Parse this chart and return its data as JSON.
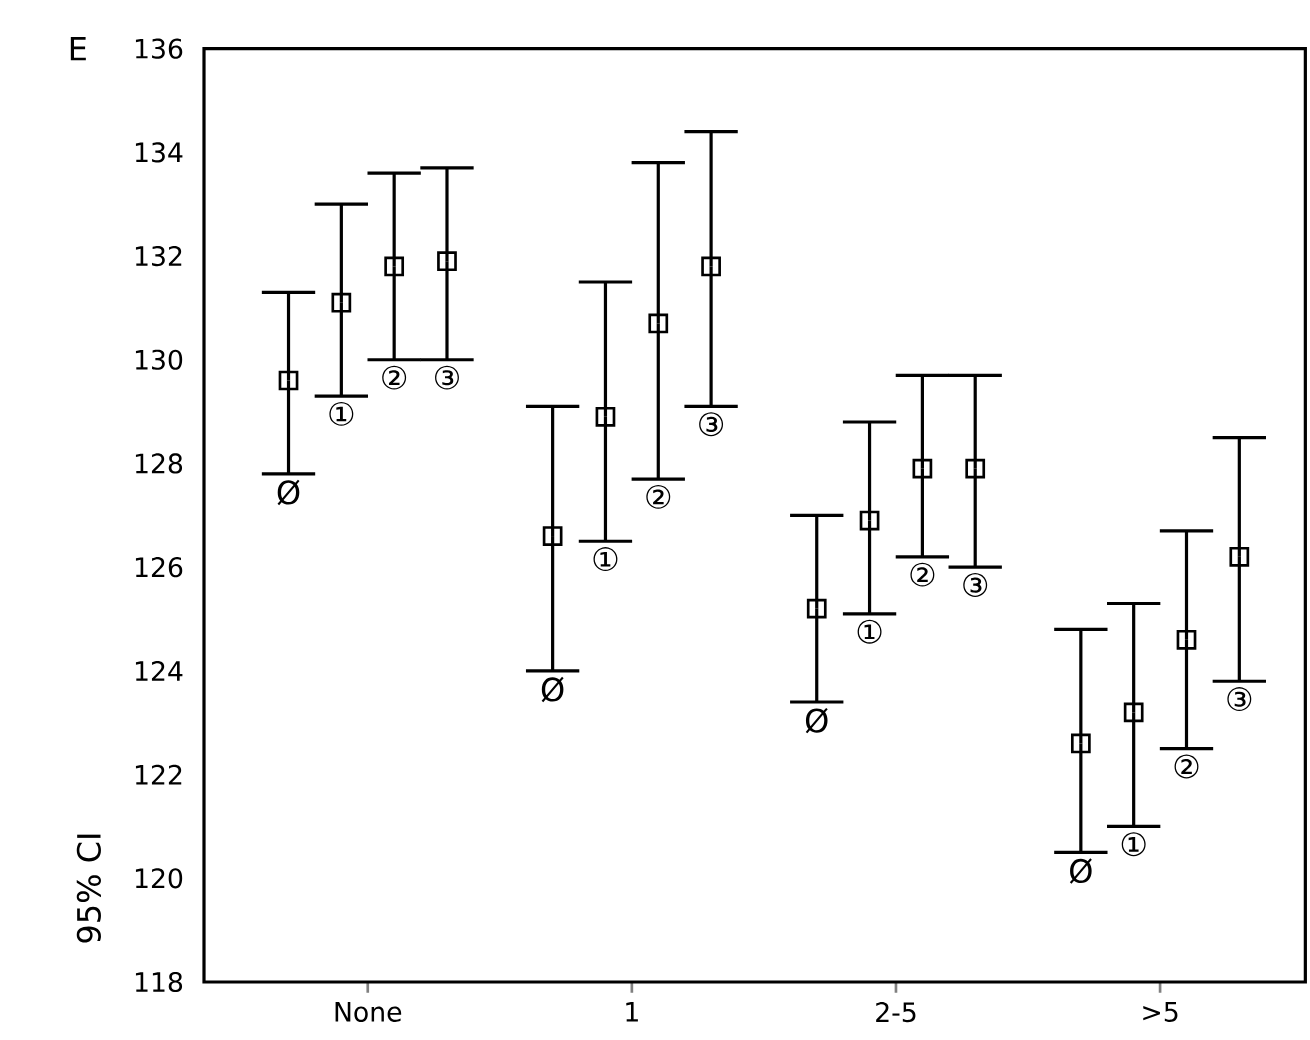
{
  "chart_data": {
    "type": "scatter",
    "categories": [
      "None",
      "1",
      "2-5",
      ">5"
    ],
    "ylabel": "95% CI",
    "annotations": [
      "E"
    ],
    "marker": "square",
    "legend": false,
    "grid": false,
    "ylim": [
      118,
      136
    ],
    "yticks": [
      118,
      120,
      122,
      124,
      126,
      128,
      130,
      132,
      134,
      136
    ],
    "series": [
      {
        "name": "Ø",
        "color": "#000000",
        "values": [
          129.6,
          126.6,
          125.2,
          122.6
        ],
        "errors": [
          [
            127.8,
            131.3
          ],
          [
            124.0,
            129.1
          ],
          [
            123.4,
            127.0
          ],
          [
            120.5,
            124.8
          ]
        ]
      },
      {
        "name": "①",
        "color": "#000000",
        "values": [
          131.1,
          128.9,
          126.9,
          123.2
        ],
        "errors": [
          [
            129.3,
            133.0
          ],
          [
            126.5,
            131.5
          ],
          [
            125.1,
            128.8
          ],
          [
            121.0,
            125.3
          ]
        ]
      },
      {
        "name": "②",
        "color": "#000000",
        "values": [
          131.8,
          130.7,
          127.9,
          124.6
        ],
        "errors": [
          [
            130.0,
            133.6
          ],
          [
            127.7,
            133.8
          ],
          [
            126.2,
            129.7
          ],
          [
            122.5,
            126.7
          ]
        ]
      },
      {
        "name": "③",
        "color": "#000000",
        "values": [
          131.9,
          131.8,
          127.9,
          126.2
        ],
        "errors": [
          [
            130.0,
            133.7
          ],
          [
            129.1,
            134.4
          ],
          [
            126.0,
            129.7
          ],
          [
            123.8,
            128.5
          ]
        ]
      }
    ]
  }
}
